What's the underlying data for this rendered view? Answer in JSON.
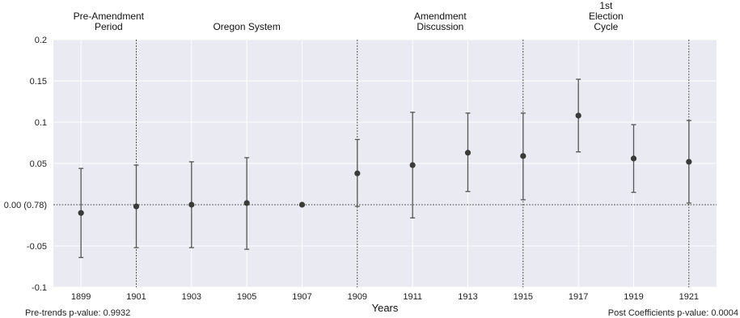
{
  "chart_data": {
    "type": "scatter",
    "x": [
      1899,
      1901,
      1903,
      1905,
      1907,
      1909,
      1911,
      1913,
      1915,
      1917,
      1919,
      1921
    ],
    "xticks": [
      "1899",
      "1901",
      "1903",
      "1905",
      "1907",
      "1909",
      "1911",
      "1913",
      "1915",
      "1917",
      "1919",
      "1921"
    ],
    "series": [
      {
        "values": [
          -0.01,
          -0.002,
          0.0,
          0.002,
          0.0,
          0.038,
          0.048,
          0.063,
          0.059,
          0.108,
          0.056,
          0.052
        ],
        "ci_low": [
          -0.064,
          -0.052,
          -0.052,
          -0.054,
          0.0,
          -0.002,
          -0.016,
          0.016,
          0.006,
          0.064,
          0.015,
          0.002
        ],
        "ci_high": [
          0.044,
          0.048,
          0.052,
          0.057,
          0.0,
          0.079,
          0.112,
          0.111,
          0.111,
          0.152,
          0.097,
          0.102
        ]
      }
    ],
    "yticks": [
      "0.2",
      "0.15",
      "0.1",
      "0.05",
      "0.00  (0.78)",
      "-0.05",
      "-0.1"
    ],
    "ytick_values": [
      0.2,
      0.15,
      0.1,
      0.05,
      0.0,
      -0.05,
      -0.1
    ],
    "ylim": [
      -0.1,
      0.2
    ],
    "xlim": [
      1898,
      1922
    ],
    "xlabel": "Years",
    "ylabel": "",
    "title": "",
    "reference_line_y": 0.0,
    "period_lines": [
      1901,
      1909,
      1915,
      1921
    ],
    "period_labels": [
      {
        "at": 1900,
        "text": [
          "Pre-Amendment",
          "Period"
        ]
      },
      {
        "at": 1905,
        "text": [
          "Oregon System"
        ]
      },
      {
        "at": 1912,
        "text": [
          "Amendment",
          "Discussion"
        ]
      },
      {
        "at": 1918,
        "text": [
          "1st",
          "Election",
          "Cycle"
        ]
      }
    ],
    "grid": true,
    "colors": {
      "background": "#eaeaf2",
      "grid": "#ffffff",
      "marker": "#3a3a3a",
      "errorbar": "#555555",
      "line": "#222222"
    }
  },
  "notes": {
    "pre_trends": "Pre-trends p-value: 0.9932",
    "post_coefficients": "Post Coefficients p-value: 0.0004"
  }
}
